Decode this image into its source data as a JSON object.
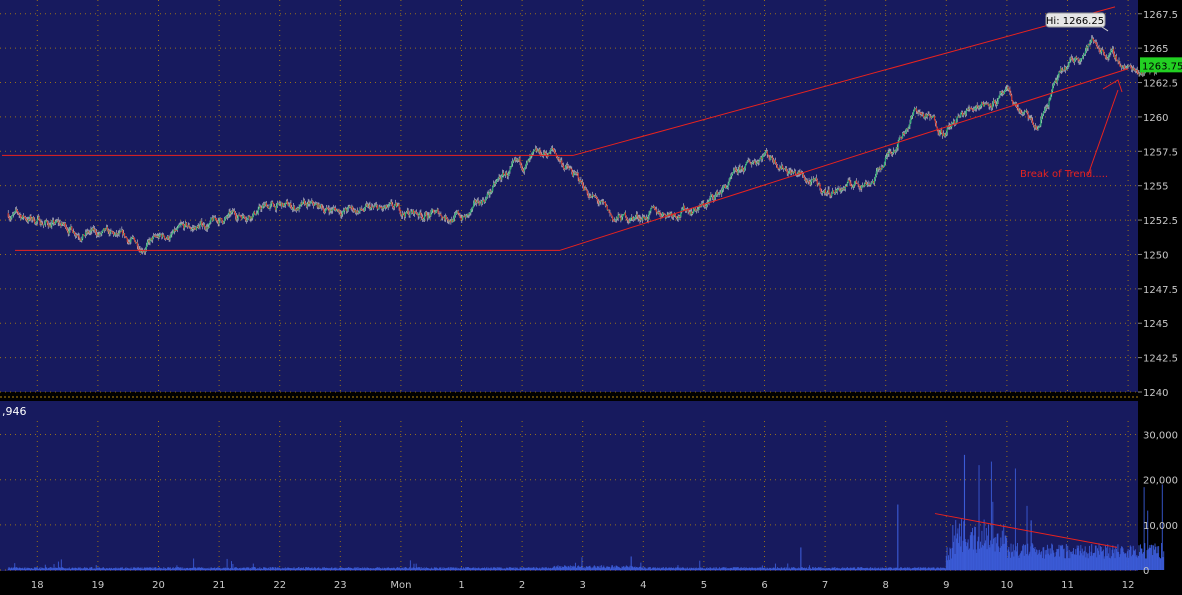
{
  "theme": {
    "background": "#171A5E",
    "grid": "#B8860B",
    "axis_text": "#C8C8C8",
    "up": "#2BB673",
    "down": "#D63A2E",
    "trendline": "#E8231E",
    "volume": "#3B5BD6",
    "last_price_bg": "#22D022"
  },
  "chart_data": [
    {
      "type": "candlestick",
      "panel": "price",
      "y_ticks": [
        "1267.5",
        "1265",
        "1262.5",
        "1260",
        "1257.5",
        "1255",
        "1252.5",
        "1250",
        "1247.5",
        "1245",
        "1242.5",
        "1240"
      ],
      "ylim": [
        1240,
        1268.5
      ],
      "x_ticks": [
        "18",
        "19",
        "20",
        "21",
        "22",
        "23",
        "Mon",
        "1",
        "2",
        "3",
        "4",
        "5",
        "6",
        "7",
        "8",
        "9",
        "10",
        "11",
        "12"
      ],
      "hi_label": "Hi: 1266.25",
      "last_price_label": "1263.75",
      "annotation": "Break of Trend.....",
      "path_x": [
        0,
        2.2,
        4.3,
        6.8,
        7.6,
        8.2,
        9.0,
        10.0,
        11.5,
        12.5,
        13.5,
        14.3,
        15.0,
        15.5,
        16.0,
        16.5,
        17.0,
        17.3,
        17.9,
        18.5,
        19.1
      ],
      "path_y": [
        1253,
        1250.7,
        1253.5,
        1253,
        1252.7,
        1255.7,
        1257.5,
        1252.5,
        1253.5,
        1257.5,
        1254.5,
        1255.5,
        1260.5,
        1259,
        1261,
        1261.5,
        1259,
        1262.5,
        1265.5,
        1263.5,
        1263.75
      ],
      "levels": {
        "range_top": 1257.2,
        "range_bottom": 1250.3,
        "channel_upper": [
          1257.2,
          1268
        ],
        "channel_lower": [
          1250.3,
          1263.5
        ]
      }
    },
    {
      "type": "bar",
      "panel": "volume",
      "header_value": ",946",
      "y_ticks": [
        "30,000",
        "20,000",
        "10,000",
        "0"
      ],
      "ylim": [
        0,
        33000
      ],
      "volume_trend": [
        12500,
        5000
      ]
    }
  ]
}
